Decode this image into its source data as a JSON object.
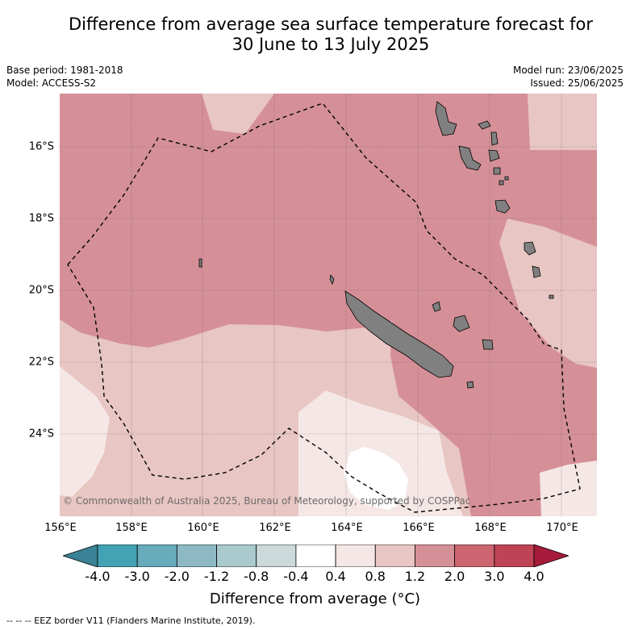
{
  "title": {
    "line1": "Difference from average sea surface temperature forecast for",
    "line2": "30 June to 13 July 2025"
  },
  "left_meta": {
    "base_period": "Base period: 1981-2018",
    "model": "Model: ACCESS-S2"
  },
  "right_meta": {
    "model_run": "Model run: 23/06/2025",
    "issued": "Issued: 25/06/2025"
  },
  "map": {
    "lat_labels": [
      "16°S",
      "18°S",
      "20°S",
      "22°S",
      "24°S"
    ],
    "lon_labels": [
      "156°E",
      "158°E",
      "160°E",
      "162°E",
      "164°E",
      "166°E",
      "168°E",
      "170°E"
    ],
    "copyright": "© Commonwealth of Australia 2025, Bureau of Meteorology, supported by COSPPac",
    "colors": {
      "band_1_2_to_2_0": "#d59097",
      "band_0_8_to_1_2": "#e8c6c3",
      "band_0_4_to_0_8": "#f5e7e5",
      "band_neg0_4_to_0_4": "#ffffff",
      "land": "#808080",
      "eez_line": "#000000"
    }
  },
  "colorbar": {
    "labels": [
      "-4.0",
      "-3.0",
      "-2.0",
      "-1.2",
      "-0.8",
      "-0.4",
      "0.4",
      "0.8",
      "1.2",
      "2.0",
      "3.0",
      "4.0"
    ],
    "colors": [
      "#3a8295",
      "#43a2b3",
      "#68abbb",
      "#8cb9c4",
      "#a9c9cd",
      "#cbd9db",
      "#ffffff",
      "#f5e7e5",
      "#e8c6c3",
      "#d59097",
      "#cd6670",
      "#be4455",
      "#a71b3a"
    ],
    "title": "Difference from average (°C)"
  },
  "footer": "-- -- -- EEZ border V11 (Flanders Marine Institute, 2019)."
}
